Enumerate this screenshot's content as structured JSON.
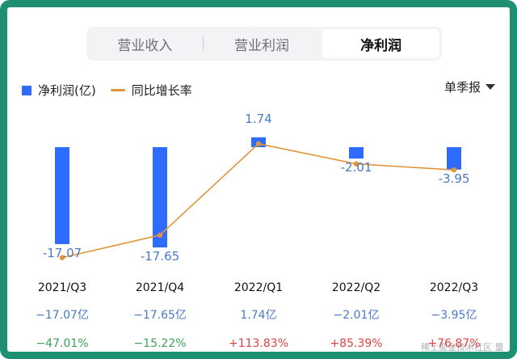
{
  "tabs": [
    {
      "label": "营业收入",
      "active": false
    },
    {
      "label": "营业利润",
      "active": false
    },
    {
      "label": "净利润",
      "active": true
    }
  ],
  "legend": {
    "bar_label": "净利润(亿)",
    "line_label": "同比增长率"
  },
  "period_selector": {
    "label": "单季报",
    "icon": "caret-down-icon"
  },
  "colors": {
    "bar": "#2f6bff",
    "line": "#e0953a",
    "negative_pct": "#3aa35a",
    "positive_pct": "#e04343",
    "value_text": "#4a79c9"
  },
  "chart_data": {
    "type": "bar",
    "categories": [
      "2021/Q3",
      "2021/Q4",
      "2022/Q1",
      "2022/Q2",
      "2022/Q3"
    ],
    "series": [
      {
        "name": "净利润(亿)",
        "type": "bar",
        "values": [
          -17.07,
          -17.65,
          1.74,
          -2.01,
          -3.95
        ]
      },
      {
        "name": "同比增长率",
        "type": "line",
        "values": [
          -47.01,
          -15.22,
          113.83,
          85.39,
          76.87
        ]
      }
    ],
    "bar_labels": [
      "-17.07",
      "-17.65",
      "1.74",
      "-2.01",
      "-3.95"
    ],
    "value_row": [
      "−17.07亿",
      "−17.65亿",
      "1.74亿",
      "−2.01亿",
      "−3.95亿"
    ],
    "pct_row": [
      "−47.01%",
      "−15.22%",
      "+113.83%",
      "+85.39%",
      "+76.87%"
    ],
    "bar_range": [
      -18,
      1.74
    ],
    "line_range": [
      -60,
      125
    ]
  },
  "watermark": "稀土掘金技术社区 量子位"
}
